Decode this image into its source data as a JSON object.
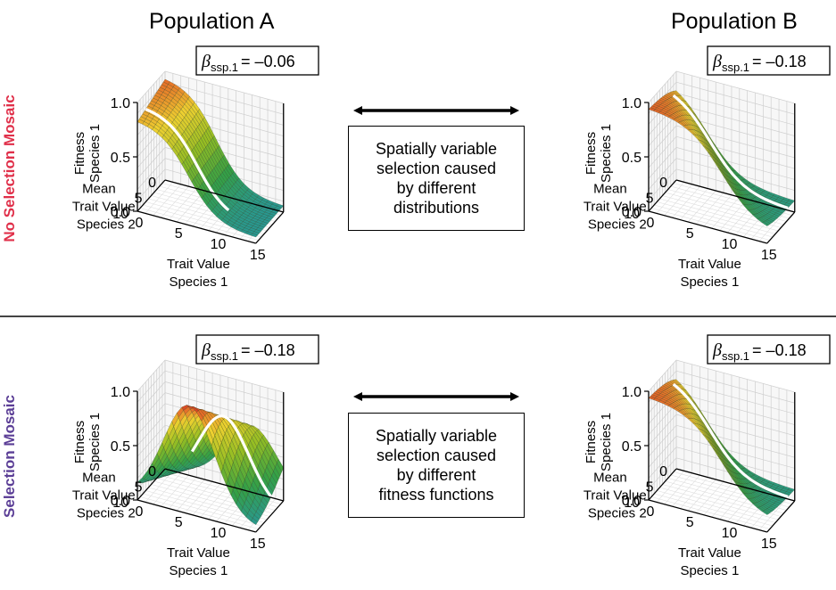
{
  "headers": {
    "left": "Population A",
    "right": "Population B"
  },
  "row_labels": {
    "top": "No Selection Mosaic",
    "bottom": "Selection Mosaic"
  },
  "colors": {
    "top_label": "#e0304a",
    "bottom_label": "#5b3e96",
    "arrow": "#000000"
  },
  "middle_boxes": [
    {
      "lines": [
        "Spatially variable",
        "selection caused",
        "by different",
        "distributions"
      ]
    },
    {
      "lines": [
        "Spatially variable",
        "selection caused",
        "by different",
        "fitness functions"
      ]
    }
  ],
  "panels": [
    {
      "beta_symbol": "β",
      "beta_sub": "ssp.1",
      "beta_value": "= –0.06",
      "shape": "decline_gentle",
      "white_line": "upper"
    },
    {
      "beta_symbol": "β",
      "beta_sub": "ssp.1",
      "beta_value": "= –0.18",
      "shape": "decline",
      "white_line": "lower"
    },
    {
      "beta_symbol": "β",
      "beta_sub": "ssp.1",
      "beta_value": "= –0.18",
      "shape": "ridge",
      "white_line": "ridge"
    },
    {
      "beta_symbol": "β",
      "beta_sub": "ssp.1",
      "beta_value": "= –0.18",
      "shape": "decline",
      "white_line": "lower"
    }
  ],
  "axes": {
    "z_label": [
      "Fitness",
      "Species 1"
    ],
    "z_ticks": [
      "0.0",
      "0.5",
      "1.0"
    ],
    "y_label": [
      "Mean",
      "Trait Value",
      "Species 2"
    ],
    "y_ticks": [
      "0",
      "5",
      "10"
    ],
    "x_label": [
      "Trait Value",
      "Species 1"
    ],
    "x_ticks": [
      "0",
      "5",
      "10",
      "15"
    ]
  }
}
